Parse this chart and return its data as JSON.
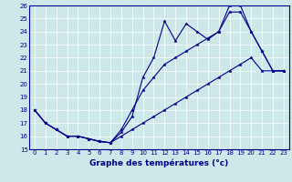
{
  "xlabel": "Graphe des températures (°c)",
  "bg_color": "#cce8e8",
  "line_color": "#00008b",
  "ylim": [
    15,
    26
  ],
  "xlim": [
    -0.5,
    23.5
  ],
  "yticks": [
    15,
    16,
    17,
    18,
    19,
    20,
    21,
    22,
    23,
    24,
    25,
    26
  ],
  "xticks": [
    0,
    1,
    2,
    3,
    4,
    5,
    6,
    7,
    8,
    9,
    10,
    11,
    12,
    13,
    14,
    15,
    16,
    17,
    18,
    19,
    20,
    21,
    22,
    23
  ],
  "hours": [
    0,
    1,
    2,
    3,
    4,
    5,
    6,
    7,
    8,
    9,
    10,
    11,
    12,
    13,
    14,
    15,
    16,
    17,
    18,
    19,
    20,
    21,
    22,
    23
  ],
  "line1": [
    18,
    17,
    16.5,
    16,
    16,
    15.8,
    15.6,
    15.5,
    16.3,
    17.5,
    20.5,
    22.0,
    24.8,
    23.3,
    24.6,
    24.0,
    23.4,
    24.0,
    26.0,
    26.0,
    24.0,
    22.5,
    21.0,
    21.0
  ],
  "line2": [
    18,
    17,
    16.5,
    16,
    16,
    15.8,
    15.6,
    15.5,
    16.5,
    18.0,
    19.5,
    20.5,
    21.5,
    22.0,
    22.5,
    23.0,
    23.5,
    24.0,
    25.5,
    25.5,
    24.0,
    22.5,
    21.0,
    21.0
  ],
  "line3": [
    18,
    17,
    16.5,
    16,
    16,
    15.8,
    15.6,
    15.5,
    16.0,
    16.5,
    17.0,
    17.5,
    18.0,
    18.5,
    19.0,
    19.5,
    20.0,
    20.5,
    21.0,
    21.5,
    22.0,
    21.0,
    21.0,
    21.0
  ],
  "tick_fontsize": 5,
  "xlabel_fontsize": 6.5,
  "marker_size": 2.5,
  "linewidth": 0.8
}
